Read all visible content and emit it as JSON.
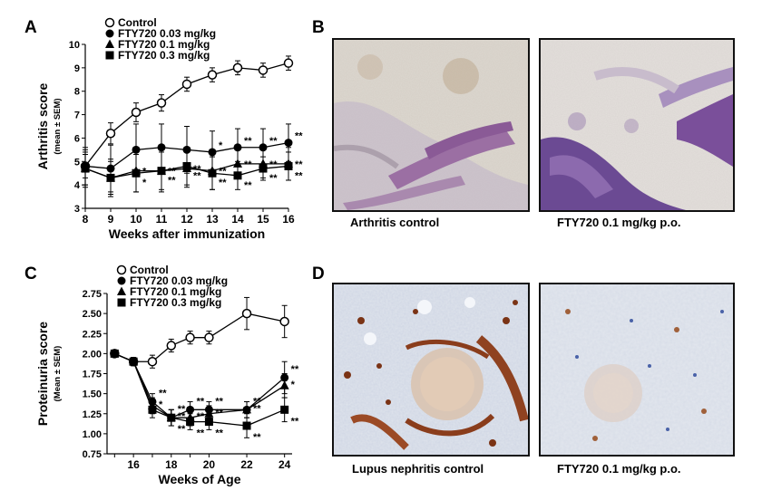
{
  "panels": {
    "A": {
      "letter": "A",
      "chart_data": {
        "type": "line",
        "xlabel": "Weeks after immunization",
        "ylabel": "Arthritis score",
        "ylabel_sub": "(mean ± SEM)",
        "x": [
          8,
          9,
          10,
          11,
          12,
          13,
          14,
          15,
          16
        ],
        "xlim": [
          8,
          16
        ],
        "ylim": [
          3,
          10
        ],
        "yticks": [
          3,
          4,
          5,
          6,
          7,
          8,
          9,
          10
        ],
        "legend_position": "top-left",
        "series": [
          {
            "name": "Control",
            "marker": "open-circle",
            "values": [
              4.8,
              6.2,
              7.1,
              7.5,
              8.3,
              8.7,
              9.0,
              8.9,
              9.2
            ],
            "errors": [
              0.5,
              0.45,
              0.4,
              0.35,
              0.3,
              0.3,
              0.3,
              0.3,
              0.3
            ],
            "sig": [
              "",
              "",
              "",
              "",
              "",
              "",
              "",
              "",
              ""
            ]
          },
          {
            "name": "FTY720 0.03 mg/kg",
            "marker": "filled-circle",
            "values": [
              4.8,
              4.7,
              5.5,
              5.6,
              5.5,
              5.4,
              5.6,
              5.6,
              5.8
            ],
            "errors": [
              0.8,
              1.0,
              1.1,
              1.0,
              1.0,
              0.9,
              0.8,
              0.8,
              0.8
            ],
            "sig": [
              "",
              "",
              "",
              "",
              "",
              "*",
              "**",
              "**",
              "**"
            ]
          },
          {
            "name": "FTY720 0.1 mg/kg",
            "marker": "filled-triangle",
            "values": [
              4.7,
              4.3,
              4.6,
              4.6,
              4.7,
              4.6,
              4.9,
              4.9,
              4.9
            ],
            "errors": [
              0.8,
              0.8,
              0.9,
              0.9,
              0.8,
              0.8,
              0.6,
              0.6,
              0.7
            ],
            "sig": [
              "",
              "",
              "*",
              "**",
              "**",
              "**",
              "**",
              "**",
              "**"
            ]
          },
          {
            "name": "FTY720 0.3 mg/kg",
            "marker": "filled-square",
            "values": [
              4.7,
              4.3,
              4.5,
              4.6,
              4.8,
              4.5,
              4.4,
              4.7,
              4.8
            ],
            "errors": [
              0.7,
              0.7,
              0.8,
              0.8,
              0.8,
              0.7,
              0.6,
              0.5,
              0.6
            ],
            "sig": [
              "",
              "",
              "*",
              "**",
              "**",
              "**",
              "**",
              "**",
              "**"
            ]
          }
        ]
      }
    },
    "B": {
      "letter": "B",
      "left_caption": "Arthritis control",
      "right_caption": "FTY720   0.1 mg/kg p.o."
    },
    "C": {
      "letter": "C",
      "chart_data": {
        "type": "line",
        "xlabel": "Weeks of Age",
        "ylabel": "Proteinuria score",
        "ylabel_sub": "(Mean ± SEM)",
        "x": [
          15,
          16,
          17,
          18,
          19,
          20,
          22,
          24
        ],
        "xticks": [
          16,
          18,
          20,
          22,
          24
        ],
        "xlim": [
          14.6,
          24.4
        ],
        "ylim": [
          0.75,
          2.75
        ],
        "yticks": [
          0.75,
          1.0,
          1.25,
          1.5,
          1.75,
          2.0,
          2.25,
          2.5,
          2.75
        ],
        "legend_position": "top-left",
        "series": [
          {
            "name": "Control",
            "marker": "open-circle",
            "values": [
              2.0,
              1.9,
              1.9,
              2.1,
              2.2,
              2.2,
              2.5,
              2.4
            ],
            "errors": [
              0.02,
              0.05,
              0.08,
              0.08,
              0.08,
              0.08,
              0.2,
              0.2
            ],
            "sig": [
              "",
              "",
              "",
              "",
              "",
              "",
              "",
              ""
            ]
          },
          {
            "name": "FTY720 0.03 mg/kg",
            "marker": "filled-circle",
            "values": [
              2.0,
              1.9,
              1.4,
              1.2,
              1.3,
              1.3,
              1.3,
              1.7
            ],
            "errors": [
              0.02,
              0.05,
              0.1,
              0.1,
              0.1,
              0.1,
              0.1,
              0.2
            ],
            "sig": [
              "",
              "",
              "**",
              "**",
              "**",
              "**",
              "**",
              "**"
            ]
          },
          {
            "name": "FTY720 0.1 mg/kg",
            "marker": "filled-triangle",
            "values": [
              2.0,
              1.9,
              1.35,
              1.2,
              1.2,
              1.25,
              1.3,
              1.6
            ],
            "errors": [
              0.02,
              0.05,
              0.1,
              0.1,
              0.1,
              0.1,
              0.1,
              0.15
            ],
            "sig": [
              "",
              "",
              "*",
              "**",
              "**",
              "**",
              "**",
              "*"
            ]
          },
          {
            "name": "FTY720 0.3 mg/kg",
            "marker": "filled-square",
            "values": [
              2.0,
              1.9,
              1.3,
              1.2,
              1.15,
              1.15,
              1.1,
              1.3
            ],
            "errors": [
              0.02,
              0.05,
              0.1,
              0.1,
              0.1,
              0.1,
              0.15,
              0.15
            ],
            "sig": [
              "",
              "",
              "",
              "**",
              "**",
              "**",
              "**",
              "**"
            ]
          }
        ]
      }
    },
    "D": {
      "letter": "D",
      "left_caption": "Lupus nephritis control",
      "right_caption": "FTY720   0.1 mg/kg p.o."
    }
  }
}
